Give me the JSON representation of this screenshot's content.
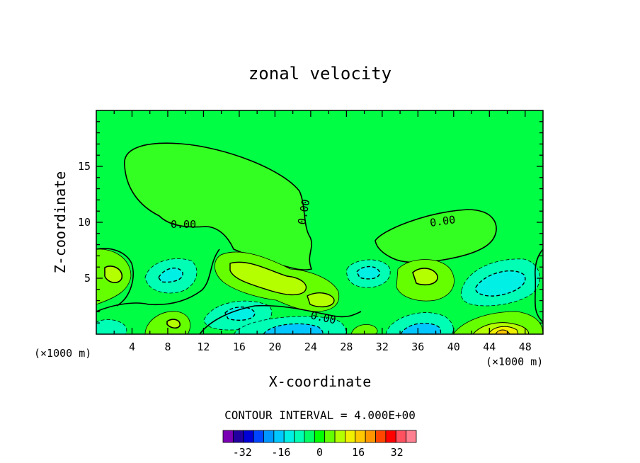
{
  "chart_data": {
    "type": "contour",
    "title": "zonal velocity",
    "xlabel": "X-coordinate",
    "ylabel": "Z-coordinate",
    "x_unit": "(×1000 m)",
    "z_unit": "(×1000 m)",
    "xlim": [
      0,
      50
    ],
    "ylim": [
      0,
      20
    ],
    "x_ticks": [
      4,
      8,
      12,
      16,
      20,
      24,
      28,
      32,
      36,
      40,
      44,
      48
    ],
    "y_ticks": [
      5,
      10,
      15
    ],
    "contour_interval_text": "CONTOUR INTERVAL = 4.000E+00",
    "contour_labels": [
      "0.00",
      "0.00",
      "0.00",
      "0.00"
    ],
    "colorbar": {
      "ticks": [
        "-32",
        "-16",
        "0",
        "16",
        "32"
      ],
      "tick_values": [
        -32,
        -16,
        0,
        16,
        32
      ],
      "range": [
        -40,
        40
      ],
      "colors": [
        "#7a00b4",
        "#2200a0",
        "#0000d6",
        "#0046ff",
        "#0096ff",
        "#00c8ff",
        "#00f0e6",
        "#00ffb4",
        "#00ff64",
        "#00ff00",
        "#64ff00",
        "#b4ff00",
        "#f0f000",
        "#ffc800",
        "#ff9600",
        "#ff4600",
        "#ff0000",
        "#ff5060",
        "#ff8090"
      ]
    },
    "field_background_color": "#00ff44",
    "features": [
      {
        "kind": "positive",
        "x": 1.5,
        "z": 5.5,
        "peak": 8
      },
      {
        "kind": "positive",
        "x": 8.5,
        "z": 1.5,
        "peak": 8
      },
      {
        "kind": "positive",
        "x": 21,
        "z": 4.5,
        "peak": 8
      },
      {
        "kind": "positive",
        "x": 24.5,
        "z": 3.2,
        "peak": 8
      },
      {
        "kind": "positive",
        "x": 37,
        "z": 5,
        "peak": 8
      },
      {
        "kind": "positive",
        "x": 46,
        "z": 0.4,
        "peak": 16
      },
      {
        "kind": "negative",
        "x": 9,
        "z": 5.5,
        "peak": -8
      },
      {
        "kind": "negative",
        "x": 16,
        "z": 2,
        "peak": -8
      },
      {
        "kind": "negative",
        "x": 22.5,
        "z": 0.5,
        "peak": -12
      },
      {
        "kind": "negative",
        "x": 30,
        "z": 5.5,
        "peak": -8
      },
      {
        "kind": "negative",
        "x": 35.5,
        "z": 0.8,
        "peak": -12
      },
      {
        "kind": "negative",
        "x": 45,
        "z": 5.5,
        "peak": -8
      }
    ]
  }
}
